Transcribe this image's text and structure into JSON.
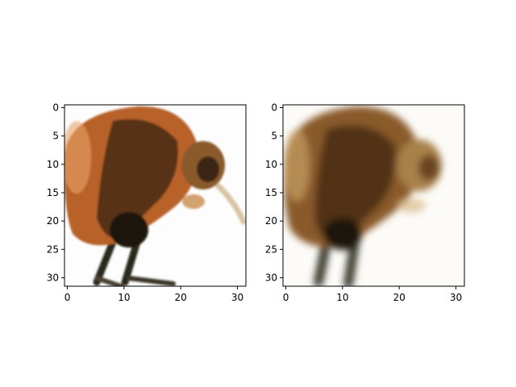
{
  "chart_data": [
    {
      "type": "heatmap",
      "title": "",
      "xlabel": "",
      "ylabel": "",
      "xlim": [
        -0.5,
        31.5
      ],
      "ylim": [
        31.5,
        -0.5
      ],
      "x_ticks": [
        0,
        10,
        20,
        30
      ],
      "y_ticks": [
        0,
        5,
        10,
        15,
        20,
        25,
        30
      ],
      "grid": false,
      "image": {
        "width": 32,
        "height": 32,
        "background": "#fdfdfd",
        "content": "Low-resolution photograph of a kiwi bird in orange-brown tones, facing right, with a long pale beak and dark legs.",
        "palette": {
          "body": "#b8622a",
          "dark": "#3a2412",
          "shadow": "#1a120b",
          "beak": "#d8c4a4",
          "light": "#e8a36a"
        }
      }
    },
    {
      "type": "heatmap",
      "title": "",
      "xlabel": "",
      "ylabel": "",
      "xlim": [
        -0.5,
        31.5
      ],
      "ylim": [
        31.5,
        -0.5
      ],
      "x_ticks": [
        0,
        10,
        20,
        30
      ],
      "y_ticks": [
        0,
        5,
        10,
        15,
        20,
        25,
        30
      ],
      "grid": false,
      "image": {
        "width": 32,
        "height": 32,
        "background": "#fcfbf8",
        "content": "Blurred reconstruction of the same kiwi image in muted brown tones, beak mostly faded.",
        "palette": {
          "body": "#8a5a2a",
          "dark": "#3e2410",
          "shadow": "#1f150c",
          "beak": "#e2d6c2",
          "light": "#c8a064"
        }
      }
    }
  ]
}
